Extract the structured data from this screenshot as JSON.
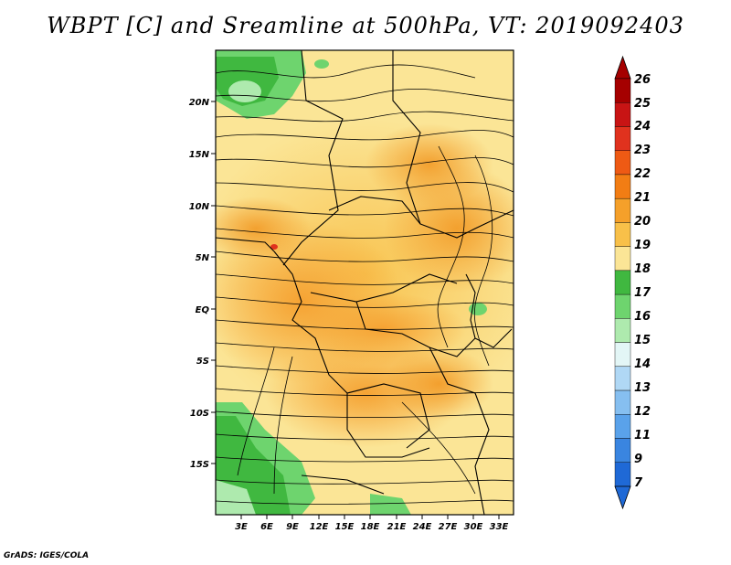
{
  "title": "WBPT [C] and Sreamline at 500hPa, VT: 2019092403",
  "footer": "GrADS: IGES/COLA",
  "map": {
    "lat_ticks": [
      "20N",
      "15N",
      "10N",
      "5N",
      "EQ",
      "5S",
      "10S",
      "15S"
    ],
    "lon_ticks": [
      "3E",
      "6E",
      "9E",
      "12E",
      "15E",
      "18E",
      "21E",
      "24E",
      "27E",
      "30E",
      "33E"
    ]
  },
  "colorbar": {
    "levels": [
      "26",
      "25",
      "24",
      "23",
      "22",
      "21",
      "20",
      "19",
      "18",
      "17",
      "16",
      "15",
      "14",
      "13",
      "12",
      "11",
      "9",
      "7"
    ],
    "colors": [
      "#a50000",
      "#c81414",
      "#e0321e",
      "#ee5a14",
      "#f27d14",
      "#f5a02a",
      "#f8c049",
      "#fbe596",
      "#40b840",
      "#6ed46e",
      "#aeeaae",
      "#e3f6f6",
      "#b0d8f5",
      "#86bff0",
      "#5aa2ea",
      "#3a85e0",
      "#1f69d6",
      "#1f69d6"
    ]
  }
}
